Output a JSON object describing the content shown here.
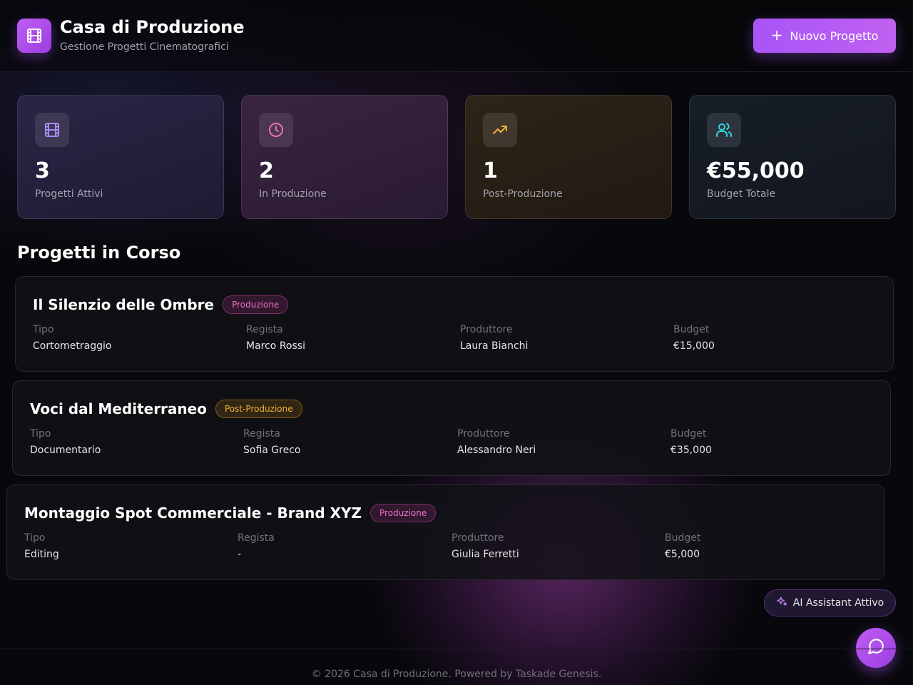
{
  "header": {
    "title": "Casa di Produzione",
    "subtitle": "Gestione Progetti Cinematografici",
    "new_button_label": "Nuovo Progetto",
    "logo_icon": "film-icon"
  },
  "stats": [
    {
      "value": "3",
      "label": "Progetti Attivi",
      "icon": "film-icon",
      "color": "#a78bfa"
    },
    {
      "value": "2",
      "label": "In Produzione",
      "icon": "clock-icon",
      "color": "#ec6fb8"
    },
    {
      "value": "1",
      "label": "Post-Produzione",
      "icon": "trending-up-icon",
      "color": "#f5b03a"
    },
    {
      "value": "€55,000",
      "label": "Budget Totale",
      "icon": "users-icon",
      "color": "#34d4e0"
    }
  ],
  "section_title": "Progetti in Corso",
  "field_labels": {
    "tipo": "Tipo",
    "regista": "Regista",
    "produttore": "Produttore",
    "budget": "Budget"
  },
  "projects": [
    {
      "title": "Il Silenzio delle Ombre",
      "status": "Produzione",
      "tipo": "Cortometraggio",
      "regista": "Marco Rossi",
      "produttore": "Laura Bianchi",
      "budget": "€15,000"
    },
    {
      "title": "Voci dal Mediterraneo",
      "status": "Post-Produzione",
      "tipo": "Documentario",
      "regista": "Sofia Greco",
      "produttore": "Alessandro Neri",
      "budget": "€35,000"
    },
    {
      "title": "Montaggio Spot Commerciale - Brand XYZ",
      "status": "Produzione",
      "tipo": "Editing",
      "regista": "-",
      "produttore": "Giulia Ferretti",
      "budget": "€5,000"
    }
  ],
  "ai_assistant_label": "AI Assistant Attivo",
  "footer": "© 2026 Casa di Produzione. Powered by Taskade Genesis.",
  "colors": {
    "accent": "#a855f7",
    "produzione": "#e870c8",
    "post_produzione": "#f0b030"
  }
}
